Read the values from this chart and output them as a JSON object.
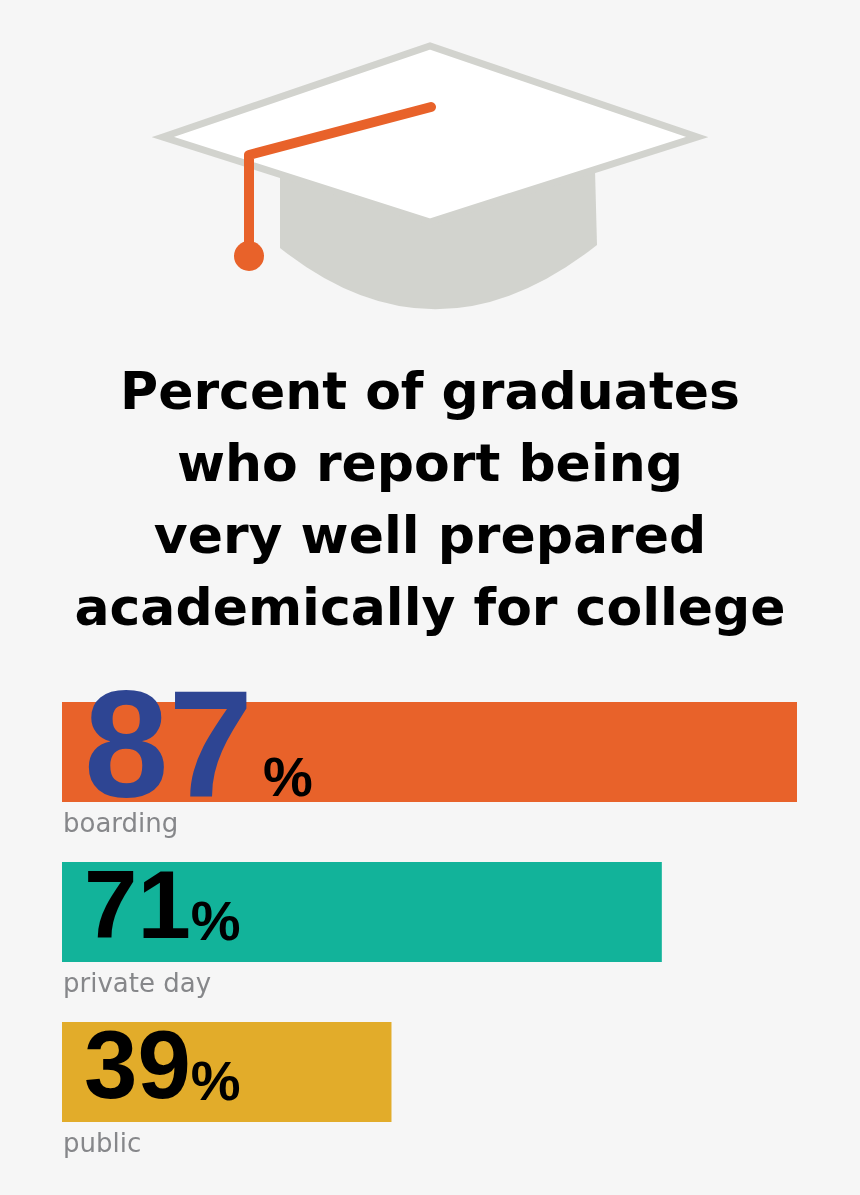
{
  "chart_data": {
    "type": "bar",
    "orientation": "horizontal",
    "title": "Percent of graduates\nwho report being\nvery well prepared\nacademically for college",
    "categories": [
      "boarding",
      "private day",
      "public"
    ],
    "values": [
      87,
      71,
      39
    ],
    "colors": [
      "#e8622a",
      "#12b39a",
      "#e2ac2a"
    ],
    "value_labels": [
      "87%",
      "71%",
      "39%"
    ]
  }
}
